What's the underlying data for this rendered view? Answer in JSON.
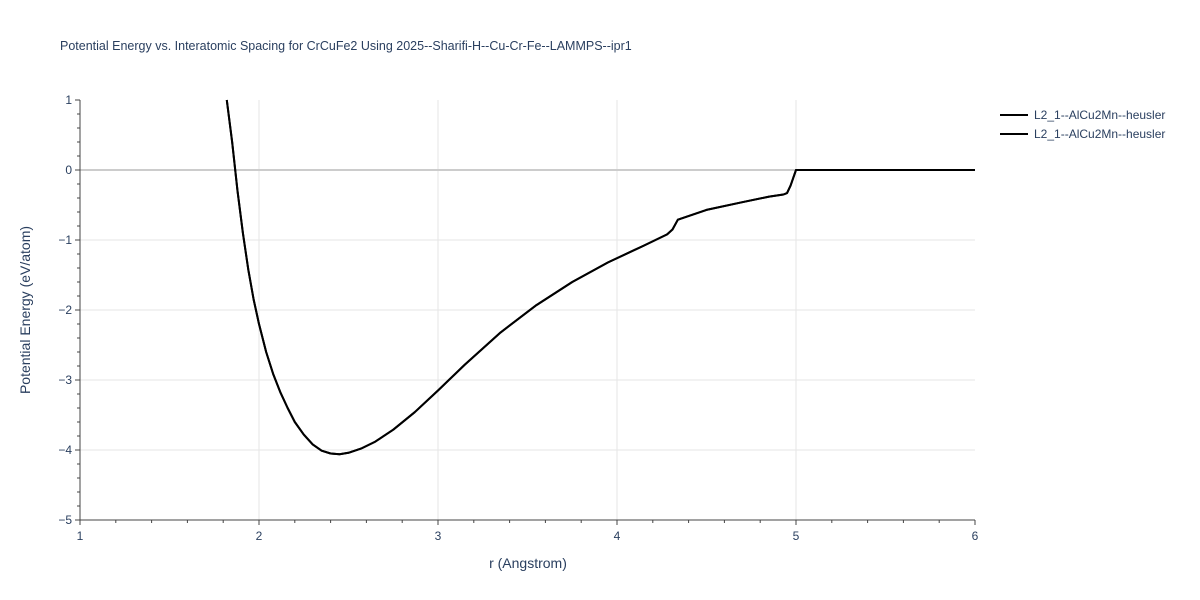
{
  "chart_data": {
    "type": "line",
    "title": "Potential Energy vs. Interatomic Spacing for CrCuFe2 Using 2025--Sharifi-H--Cu-Cr-Fe--LAMMPS--ipr1",
    "xlabel": "r (Angstrom)",
    "ylabel": "Potential Energy (eV/atom)",
    "xlim": [
      1,
      6
    ],
    "ylim": [
      -5,
      1
    ],
    "x_ticks": [
      "1",
      "2",
      "3",
      "4",
      "5",
      "6"
    ],
    "y_ticks": [
      "1",
      "0",
      "−1",
      "−2",
      "−3",
      "−4",
      "−5"
    ],
    "x_tick_values": [
      1,
      2,
      3,
      4,
      5,
      6
    ],
    "y_tick_values": [
      1,
      0,
      -1,
      -2,
      -3,
      -4,
      -5
    ],
    "grid": true,
    "legend_position": "top-right",
    "line_color": "#000000",
    "series": [
      {
        "name": "L2_1--AlCu2Mn--heusler",
        "x": [
          1.82,
          1.85,
          1.88,
          1.91,
          1.94,
          1.97,
          2.0,
          2.04,
          2.08,
          2.12,
          2.16,
          2.2,
          2.25,
          2.3,
          2.35,
          2.4,
          2.45,
          2.5,
          2.57,
          2.65,
          2.75,
          2.87,
          3.0,
          3.15,
          3.35,
          3.55,
          3.75,
          3.95,
          4.15,
          4.28,
          4.31,
          4.34,
          4.5,
          4.7,
          4.85,
          4.93,
          4.95,
          4.97,
          5.0,
          5.5,
          6.0
        ],
        "y": [
          1.0,
          0.4,
          -0.3,
          -0.9,
          -1.42,
          -1.85,
          -2.2,
          -2.6,
          -2.92,
          -3.18,
          -3.4,
          -3.6,
          -3.78,
          -3.92,
          -4.01,
          -4.05,
          -4.06,
          -4.04,
          -3.98,
          -3.88,
          -3.71,
          -3.46,
          -3.15,
          -2.78,
          -2.32,
          -1.93,
          -1.6,
          -1.32,
          -1.08,
          -0.92,
          -0.85,
          -0.71,
          -0.57,
          -0.46,
          -0.38,
          -0.35,
          -0.33,
          -0.22,
          0.0,
          0.0,
          0.0
        ]
      },
      {
        "name": "L2_1--AlCu2Mn--heusler",
        "x": [
          1.82,
          1.85,
          1.88,
          1.91,
          1.94,
          1.97,
          2.0,
          2.04,
          2.08,
          2.12,
          2.16,
          2.2,
          2.25,
          2.3,
          2.35,
          2.4,
          2.45,
          2.5,
          2.57,
          2.65,
          2.75,
          2.87,
          3.0,
          3.15,
          3.35,
          3.55,
          3.75,
          3.95,
          4.15,
          4.28,
          4.31,
          4.34,
          4.5,
          4.7,
          4.85,
          4.93,
          4.95,
          4.97,
          5.0,
          5.5,
          6.0
        ],
        "y": [
          1.0,
          0.4,
          -0.3,
          -0.9,
          -1.42,
          -1.85,
          -2.2,
          -2.6,
          -2.92,
          -3.18,
          -3.4,
          -3.6,
          -3.78,
          -3.92,
          -4.01,
          -4.05,
          -4.06,
          -4.04,
          -3.98,
          -3.88,
          -3.71,
          -3.46,
          -3.15,
          -2.78,
          -2.32,
          -1.93,
          -1.6,
          -1.32,
          -1.08,
          -0.92,
          -0.85,
          -0.71,
          -0.57,
          -0.46,
          -0.38,
          -0.35,
          -0.33,
          -0.22,
          0.0,
          0.0,
          0.0
        ]
      }
    ]
  }
}
